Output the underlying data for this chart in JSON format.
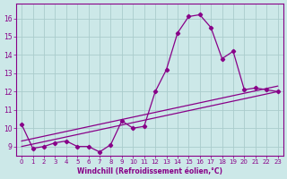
{
  "x": [
    0,
    1,
    2,
    3,
    4,
    5,
    6,
    7,
    8,
    9,
    10,
    11,
    12,
    13,
    14,
    15,
    16,
    17,
    18,
    19,
    20,
    21,
    22,
    23
  ],
  "y_main": [
    10.2,
    8.9,
    9.0,
    9.2,
    9.3,
    9.0,
    9.0,
    8.7,
    9.1,
    10.4,
    10.0,
    10.1,
    12.0,
    13.2,
    15.2,
    16.1,
    16.2,
    15.5,
    13.8,
    14.2,
    12.1,
    12.2,
    12.1,
    12.0
  ],
  "line1_start": 9.0,
  "line1_end": 12.0,
  "line2_start": 9.3,
  "line2_end": 12.3,
  "line_color": "#880088",
  "background_color": "#cce8e8",
  "grid_color": "#aacccc",
  "xlabel": "Windchill (Refroidissement éolien,°C)",
  "xlim_min": -0.5,
  "xlim_max": 23.5,
  "ylim_min": 8.5,
  "ylim_max": 16.8,
  "yticks": [
    9,
    10,
    11,
    12,
    13,
    14,
    15,
    16
  ],
  "xticks": [
    0,
    1,
    2,
    3,
    4,
    5,
    6,
    7,
    8,
    9,
    10,
    11,
    12,
    13,
    14,
    15,
    16,
    17,
    18,
    19,
    20,
    21,
    22,
    23
  ],
  "tick_fontsize": 5.0,
  "xlabel_fontsize": 5.5,
  "marker": "D",
  "markersize": 2.2,
  "linewidth": 0.9
}
